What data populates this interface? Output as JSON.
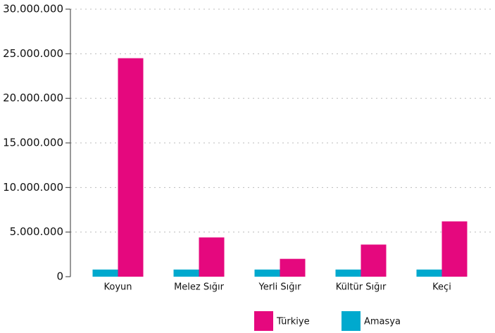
{
  "chart_data": {
    "type": "bar",
    "categories": [
      "Koyun",
      "Melez Sığır",
      "Yerli Sığır",
      "Kültür Sığır",
      "Keçi"
    ],
    "series": [
      {
        "name": "Türkiye",
        "color": "#e5087e",
        "values": [
          24500000,
          4400000,
          2000000,
          3600000,
          6200000
        ]
      },
      {
        "name": "Amasya",
        "color": "#00a9ce",
        "values": [
          800000,
          800000,
          800000,
          800000,
          800000
        ]
      }
    ],
    "ylim": [
      0,
      30000000
    ],
    "yticks": [
      0,
      {
        "value": 5000000,
        "label": "5.000.000"
      },
      {
        "value": 10000000,
        "label": "10.000.000"
      },
      {
        "value": 15000000,
        "label": "15.000.000"
      },
      {
        "value": 20000000,
        "label": "20.000.000"
      },
      {
        "value": 25000000,
        "label": "25.000.000"
      },
      {
        "value": 30000000,
        "label": "30.000.000"
      }
    ],
    "grid": true,
    "legend": "bottom"
  }
}
